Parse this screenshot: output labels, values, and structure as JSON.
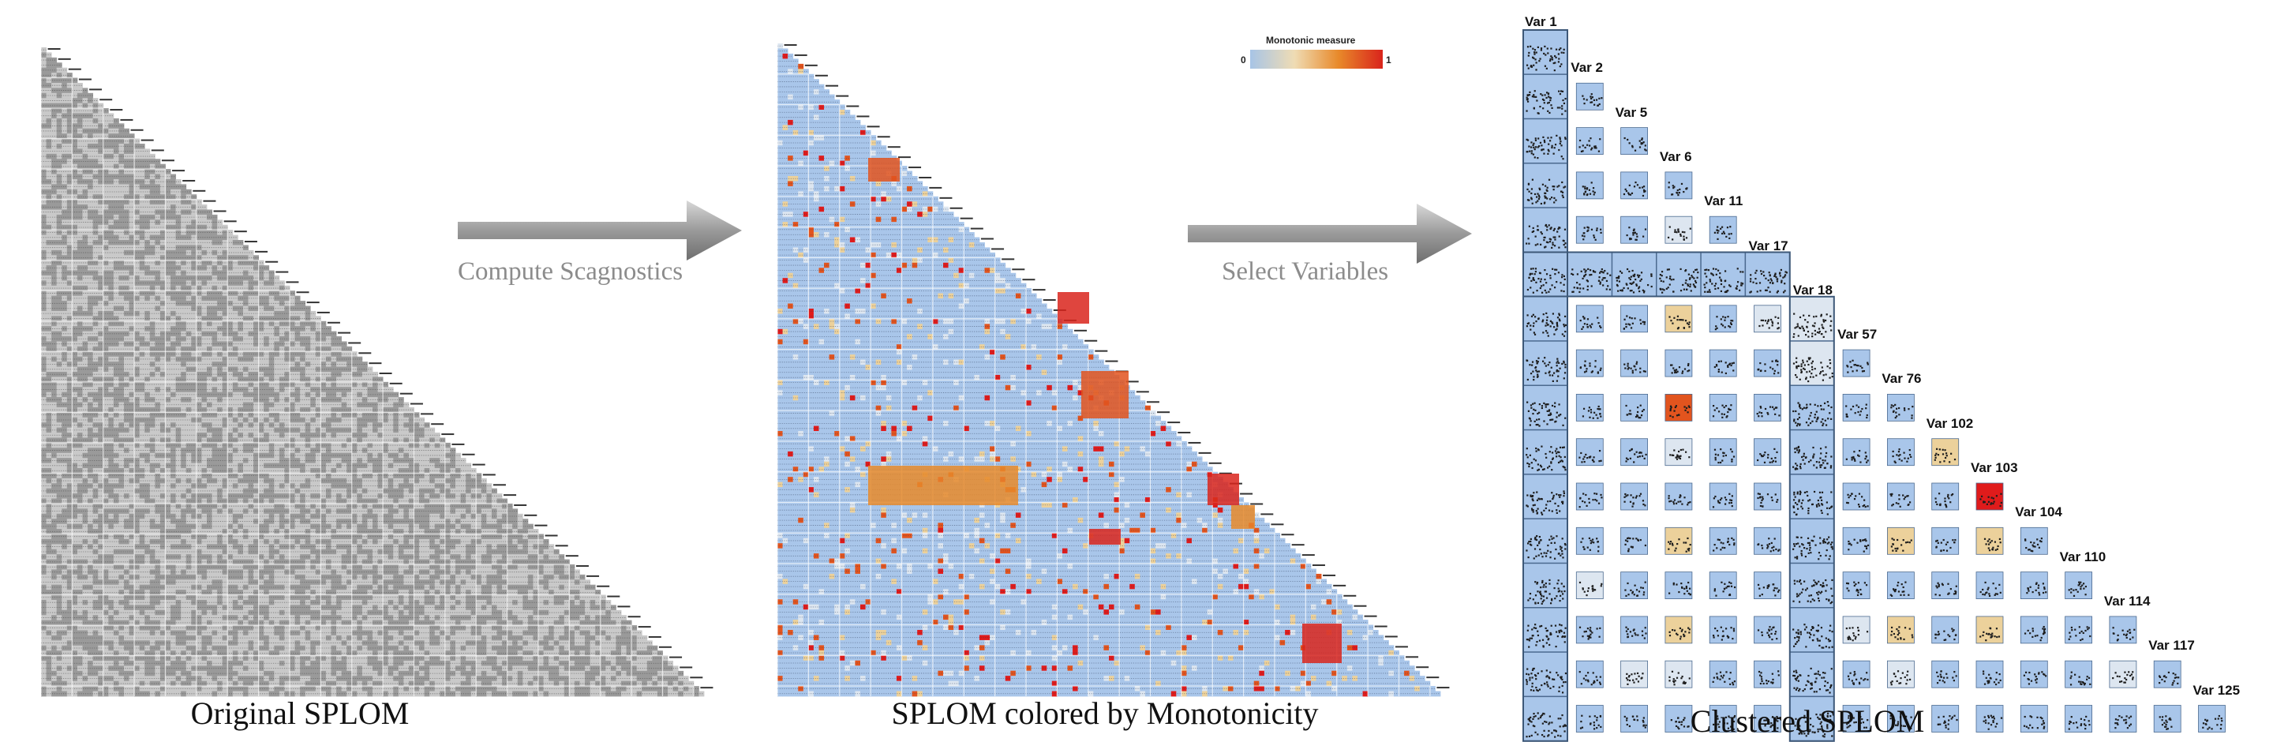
{
  "captions": {
    "original": "Original SPLOM",
    "colored": "SPLOM colored by Monotonicity",
    "clustered": "Clustered SPLOM"
  },
  "arrows": [
    {
      "label": "Compute Scagnostics"
    },
    {
      "label": "Select Variables"
    }
  ],
  "legend": {
    "title": "Monotonic measure",
    "min": "0",
    "max": "1",
    "colors": [
      "#a7c4e6",
      "#efdcb4",
      "#e8892a",
      "#d9241c"
    ]
  },
  "clustered_variables": [
    "Var 1",
    "Var 2",
    "Var 5",
    "Var 6",
    "Var 11",
    "Var 17",
    "Var 18",
    "Var 57",
    "Var 76",
    "Var 102",
    "Var 103",
    "Var 104",
    "Var 110",
    "Var 114",
    "Var 117",
    "Var 125"
  ],
  "colors": {
    "cell_blue": "#a9c6ea",
    "cell_light": "#dde6f0",
    "cell_tan": "#ecd19b",
    "cell_orange": "#e2541e",
    "cell_red": "#e01b1b",
    "arrow_gray": "#9a9a9a",
    "caption_text": "#111111"
  }
}
